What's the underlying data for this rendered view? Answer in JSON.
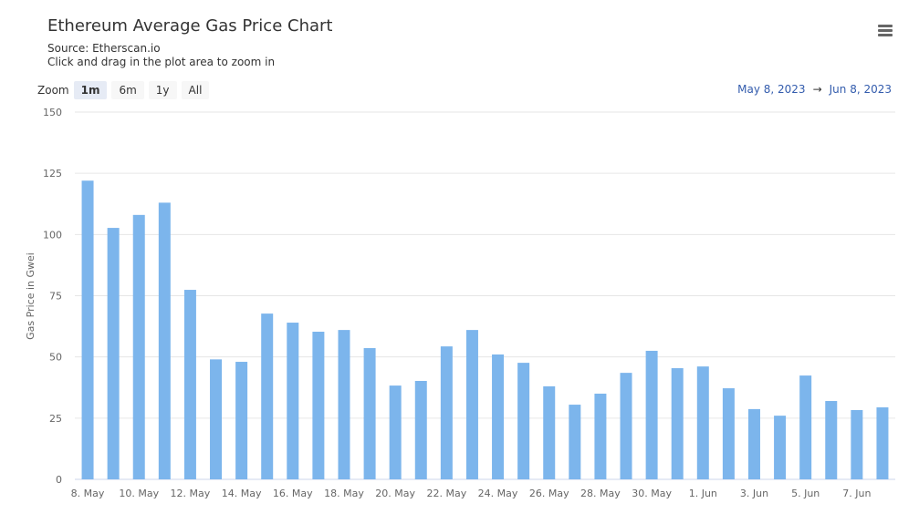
{
  "header": {
    "title": "Ethereum Average Gas Price Chart",
    "source": "Source: Etherscan.io",
    "hint": "Click and drag in the plot area to zoom in"
  },
  "menu_icon": "hamburger-menu-icon",
  "zoom": {
    "label": "Zoom",
    "buttons": [
      "1m",
      "6m",
      "1y",
      "All"
    ],
    "active": "1m"
  },
  "range": {
    "from": "May 8, 2023",
    "arrow": "→",
    "to": "Jun 8, 2023"
  },
  "colors": {
    "bar": "#7cb5ec",
    "grid": "#e6e6e6",
    "range_text": "#335cad"
  },
  "chart_data": {
    "type": "bar",
    "title": "Ethereum Average Gas Price Chart",
    "ylabel": "Gas Price in Gwei",
    "xlabel": "",
    "ylim": [
      0,
      150
    ],
    "yticks": [
      0,
      25,
      50,
      75,
      100,
      125,
      150
    ],
    "grid": true,
    "categories": [
      "8. May",
      "9. May",
      "10. May",
      "11. May",
      "12. May",
      "13. May",
      "14. May",
      "15. May",
      "16. May",
      "17. May",
      "18. May",
      "19. May",
      "20. May",
      "21. May",
      "22. May",
      "23. May",
      "24. May",
      "25. May",
      "26. May",
      "27. May",
      "28. May",
      "29. May",
      "30. May",
      "31. May",
      "1. Jun",
      "2. Jun",
      "3. Jun",
      "4. Jun",
      "5. Jun",
      "6. Jun",
      "7. Jun",
      "8. Jun"
    ],
    "xtick_labels": [
      "8. May",
      "10. May",
      "12. May",
      "14. May",
      "16. May",
      "18. May",
      "20. May",
      "22. May",
      "24. May",
      "26. May",
      "28. May",
      "30. May",
      "1. Jun",
      "3. Jun",
      "5. Jun",
      "7. Jun"
    ],
    "values": [
      122,
      102.7,
      108,
      113,
      77.4,
      49,
      48,
      67.7,
      64,
      60.3,
      61,
      53.6,
      38.3,
      40.2,
      54.3,
      61,
      51,
      47.6,
      38,
      30.5,
      35,
      43.5,
      52.5,
      45.4,
      46.1,
      37.2,
      28.7,
      26,
      42.4,
      32,
      28.3,
      29.4
    ]
  }
}
